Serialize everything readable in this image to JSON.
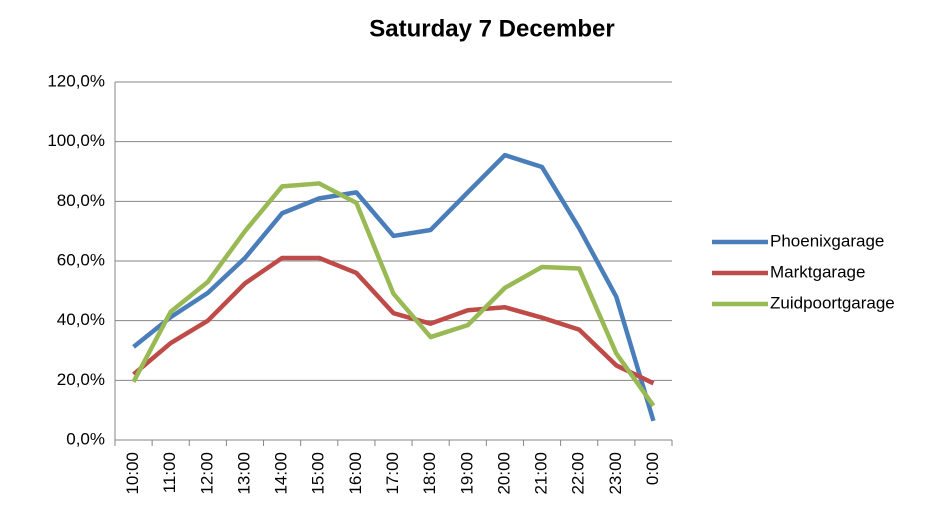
{
  "chart_data": {
    "type": "line",
    "title": "Saturday 7 December",
    "categories": [
      "10:00",
      "11:00",
      "12:00",
      "13:00",
      "14:00",
      "15:00",
      "16:00",
      "17:00",
      "18:00",
      "19:00",
      "20:00",
      "21:00",
      "22:00",
      "23:00",
      "0:00"
    ],
    "series": [
      {
        "name": "Phoenixgarage",
        "color": "#4a7ebb",
        "values": [
          31.2,
          41.2,
          49.3,
          61,
          76,
          81,
          83,
          68.4,
          70.4,
          83,
          95.5,
          91.5,
          71,
          48,
          6.4
        ]
      },
      {
        "name": "Marktgarage",
        "color": "#be4b48",
        "values": [
          22,
          32.5,
          40,
          52.5,
          61,
          61,
          56,
          42.5,
          39,
          43.5,
          44.5,
          41,
          37,
          25,
          19
        ]
      },
      {
        "name": "Zuidpoortgarage",
        "color": "#98b954",
        "values": [
          19.5,
          43,
          53,
          70,
          85,
          86,
          79.5,
          49,
          34.5,
          38.5,
          51,
          58,
          57.5,
          29,
          11.5
        ]
      }
    ],
    "ylim": [
      0,
      120
    ],
    "yticks": [
      {
        "value": 0,
        "label": "0,0%"
      },
      {
        "value": 20,
        "label": "20,0%"
      },
      {
        "value": 40,
        "label": "40,0%"
      },
      {
        "value": 60,
        "label": "60,0%"
      },
      {
        "value": 80,
        "label": "80,0%"
      },
      {
        "value": 100,
        "label": "100,0%"
      },
      {
        "value": 120,
        "label": "120,0%"
      }
    ],
    "grid": true,
    "legend": "right"
  }
}
